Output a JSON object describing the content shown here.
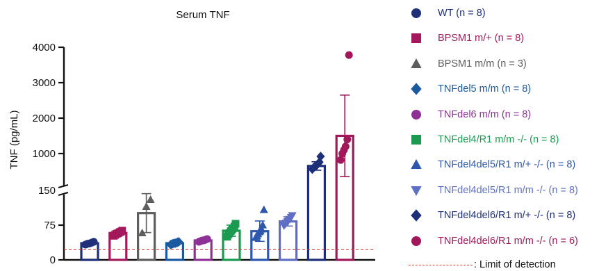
{
  "chart_data": {
    "type": "bar",
    "title": "Serum TNF",
    "ylabel": "TNF (pg/mL)",
    "xlabel": "",
    "axis_break": {
      "lower_range": [
        0,
        150
      ],
      "upper_range": [
        150,
        4000
      ]
    },
    "yticks_lower": [
      0,
      75,
      150
    ],
    "yticks_upper": [
      1000,
      2000,
      3000,
      4000
    ],
    "limit_of_detection": {
      "value": 22,
      "label": ": Limit of detection",
      "color": "#d83a3a"
    },
    "series": [
      {
        "name": "WT (n = 8)",
        "color": "#1f2f7a",
        "marker": "circle",
        "mean": 36,
        "error": 3,
        "points": [
          33,
          34,
          35,
          35,
          36,
          37,
          38,
          39
        ]
      },
      {
        "name": "BPSM1 m/+ (n = 8)",
        "color": "#a3195b",
        "marker": "square",
        "mean": 58,
        "error": 5,
        "points": [
          52,
          54,
          56,
          57,
          58,
          60,
          61,
          63
        ]
      },
      {
        "name": "BPSM1 m/m (n = 3)",
        "color": "#5e5e5e",
        "marker": "triangle",
        "mean": 101,
        "error": 42,
        "points": [
          58,
          115,
          130
        ]
      },
      {
        "name": "TNFdel5 m/m (n = 8)",
        "color": "#1c5aa0",
        "marker": "diamond",
        "mean": 36,
        "error": 3,
        "points": [
          33,
          34,
          35,
          36,
          36,
          37,
          38,
          39
        ]
      },
      {
        "name": "TNFdel6 m/m (n = 8)",
        "color": "#8e3197",
        "marker": "circle",
        "mean": 42,
        "error": 3,
        "points": [
          39,
          40,
          41,
          42,
          42,
          43,
          44,
          45
        ]
      },
      {
        "name": "TNFdel4/R1 m/m -/- (n = 8)",
        "color": "#1b9a50",
        "marker": "square",
        "mean": 63,
        "error": 12,
        "points": [
          50,
          55,
          58,
          62,
          65,
          68,
          72,
          78
        ]
      },
      {
        "name": "TNFdel4del5/R1 m/+ -/- (n = 8)",
        "color": "#2e58ac",
        "marker": "triangle",
        "mean": 62,
        "error": 22,
        "points": [
          48,
          52,
          56,
          60,
          62,
          66,
          75,
          108
        ]
      },
      {
        "name": "TNFdel4del5/R1 m/m -/- (n = 8)",
        "color": "#5f6fc4",
        "marker": "triangle-down",
        "mean": 83,
        "error": 10,
        "points": [
          74,
          77,
          80,
          83,
          86,
          88,
          92,
          96
        ]
      },
      {
        "name": "TNFdel4del6/R1 m/+ -/- (n = 8)",
        "color": "#1d2f78",
        "marker": "diamond",
        "mean": 650,
        "error": 120,
        "points": [
          560,
          600,
          630,
          650,
          680,
          720,
          760,
          920
        ]
      },
      {
        "name": "TNFdel4del6/R1 m/m -/- (n = 6)",
        "color": "#a0185a",
        "marker": "circle",
        "mean": 1500,
        "error": 1150,
        "points": [
          820,
          1000,
          1100,
          1200,
          1400,
          3780
        ]
      }
    ]
  }
}
